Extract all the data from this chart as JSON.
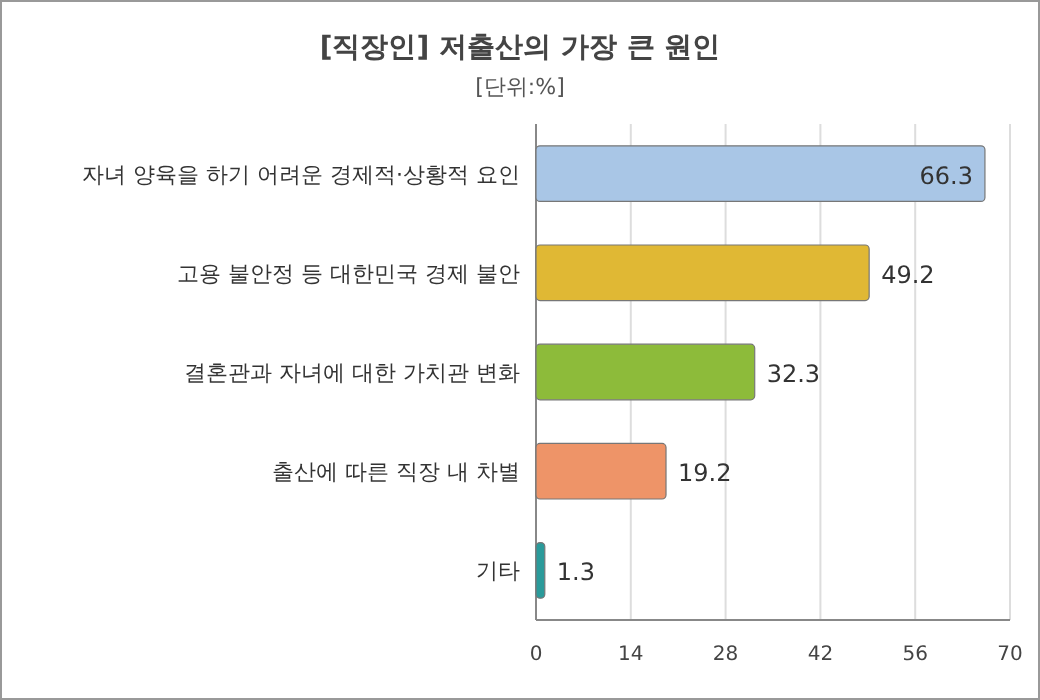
{
  "chart_data": {
    "type": "bar",
    "orientation": "horizontal",
    "title": "[직장인] 저출산의 가장 큰 원인",
    "subtitle": "[단위:%]",
    "categories": [
      "자녀 양육을 하기 어려운 경제적·상황적 요인",
      "고용 불안정 등 대한민국 경제 불안",
      "결혼관과 자녀에 대한 가치관 변화",
      "출산에 따른 직장 내 차별",
      "기타"
    ],
    "values": [
      66.3,
      49.2,
      32.3,
      19.2,
      1.3
    ],
    "colors": [
      "#a9c6e6",
      "#e0b834",
      "#8dbb3a",
      "#ee9468",
      "#2a9a9a"
    ],
    "xlim": [
      0,
      70
    ],
    "xticks": [
      0,
      14,
      28,
      42,
      56,
      70
    ],
    "grid": "x",
    "data_labels": true
  }
}
